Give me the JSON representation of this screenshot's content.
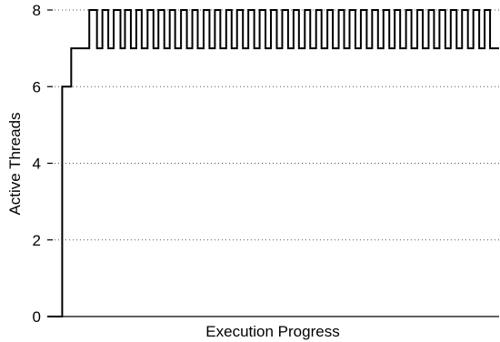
{
  "chart_data": {
    "type": "line",
    "title": "",
    "xlabel": "Execution Progress",
    "ylabel": "Active Threads",
    "ylim": [
      0,
      8
    ],
    "yticks": [
      0,
      2,
      4,
      6,
      8
    ],
    "xticks": [],
    "grid": "y-dotted",
    "series": [
      {
        "line_color": "#000000",
        "x": [
          0,
          3.3,
          3.3,
          5.3,
          5.3,
          9.3,
          9.3,
          11.0,
          11.0,
          12.2,
          12.2,
          13.5,
          13.5,
          14.7,
          14.7,
          16.2,
          16.2,
          17.2,
          17.2,
          18.5,
          18.5,
          19.7,
          19.7,
          20.9,
          20.9,
          22.2,
          22.2,
          23.5,
          23.5,
          24.6,
          24.6,
          25.9,
          25.9,
          27.1,
          27.1,
          28.3,
          28.3,
          29.6,
          29.6,
          30.9,
          30.9,
          32.1,
          32.1,
          33.3,
          33.3,
          34.6,
          34.6,
          35.9,
          35.9,
          37.1,
          37.1,
          38.3,
          38.3,
          39.6,
          39.6,
          40.8,
          40.8,
          42.0,
          42.0,
          43.3,
          43.3,
          44.5,
          44.5,
          45.8,
          45.8,
          47.0,
          47.0,
          48.3,
          48.3,
          49.5,
          49.5,
          50.8,
          50.8,
          52.0,
          52.0,
          53.3,
          53.3,
          54.5,
          54.5,
          55.7,
          55.7,
          57.0,
          57.0,
          58.2,
          58.2,
          59.5,
          59.5,
          60.7,
          60.7,
          62.0,
          62.0,
          63.2,
          63.2,
          64.5,
          64.5,
          65.7,
          65.7,
          66.9,
          66.9,
          68.2,
          68.2,
          69.4,
          69.4,
          70.7,
          70.7,
          71.9,
          71.9,
          73.2,
          73.2,
          74.4,
          74.4,
          75.7,
          75.7,
          76.9,
          76.9,
          78.1,
          78.1,
          79.4,
          79.4,
          80.6,
          80.6,
          81.9,
          81.9,
          83.1,
          83.1,
          84.4,
          84.4,
          85.6,
          85.6,
          86.8,
          86.8,
          88.1,
          88.1,
          89.3,
          89.3,
          90.6,
          90.6,
          91.8,
          91.8,
          93.1,
          93.1,
          94.3,
          94.3,
          95.6,
          95.6,
          96.8,
          96.8,
          98.0,
          98.0,
          100
        ],
        "y": [
          0,
          0,
          6,
          6,
          7,
          7,
          8,
          8,
          7,
          7,
          8,
          8,
          7,
          7,
          8,
          8,
          7,
          7,
          8,
          8,
          7,
          7,
          8,
          8,
          7,
          7,
          8,
          8,
          7,
          7,
          8,
          8,
          7,
          7,
          8,
          8,
          7,
          7,
          8,
          8,
          7,
          7,
          8,
          8,
          7,
          7,
          8,
          8,
          7,
          7,
          8,
          8,
          7,
          7,
          8,
          8,
          7,
          7,
          8,
          8,
          7,
          7,
          8,
          8,
          7,
          7,
          8,
          8,
          7,
          7,
          8,
          8,
          7,
          7,
          8,
          8,
          7,
          7,
          8,
          8,
          7,
          7,
          8,
          8,
          7,
          7,
          8,
          8,
          7,
          7,
          8,
          8,
          7,
          7,
          8,
          8,
          7,
          7,
          8,
          8,
          7,
          7,
          8,
          8,
          7,
          7,
          8,
          8,
          7,
          7,
          8,
          8,
          7,
          7,
          8,
          8,
          7,
          7,
          8,
          8,
          7,
          7,
          8,
          8,
          7,
          7,
          8,
          8,
          7,
          7,
          8,
          8,
          7,
          7,
          8,
          8,
          7,
          7,
          8,
          8,
          7,
          7,
          8,
          8,
          7,
          7,
          8,
          8,
          7,
          7
        ]
      }
    ]
  }
}
